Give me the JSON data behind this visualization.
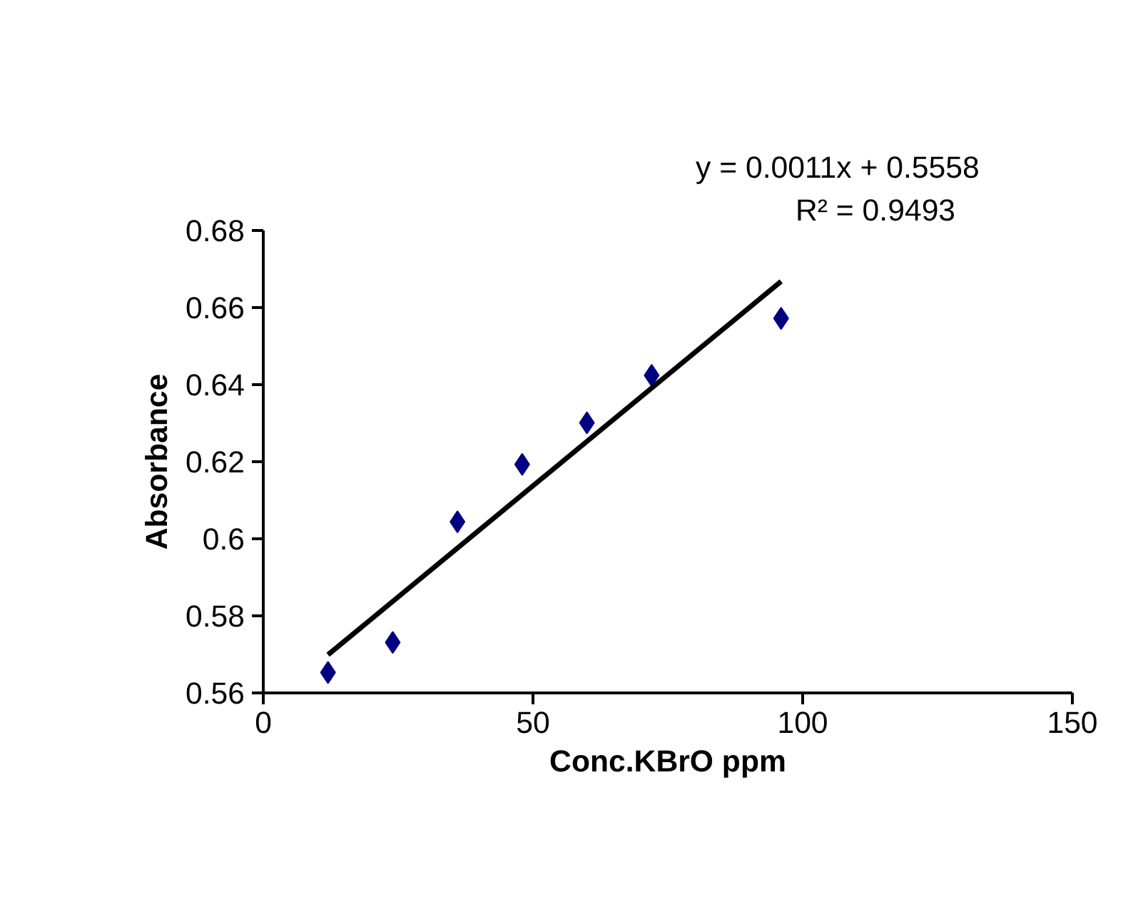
{
  "chart_data": {
    "type": "scatter",
    "xlabel": "Conc.KBrO ppm",
    "ylabel": "Absorbance",
    "xlim": [
      0,
      150
    ],
    "xticks": [
      0,
      50,
      100,
      150
    ],
    "ylim": [
      0.56,
      0.68
    ],
    "yticks": [
      0.56,
      0.58,
      {
        "value": 0.6,
        "label": "0.6"
      },
      0.62,
      0.64,
      0.66,
      0.68
    ],
    "grid": false,
    "marker": "diamond",
    "series": [
      {
        "color": "#000080",
        "x": [
          12,
          24,
          36,
          48,
          60,
          72,
          96
        ],
        "values": [
          0.5653,
          0.5731,
          0.6044,
          0.6193,
          0.6301,
          0.6424,
          0.6572
        ]
      },
      {
        "type": "line",
        "color": "#000000",
        "x": [
          12,
          96
        ],
        "values": [
          0.5699,
          0.6668
        ],
        "marker": "none",
        "line_style": "solid"
      }
    ],
    "annotations": [
      "y = 0.0011x + 0.5558",
      "R² = 0.9493"
    ]
  }
}
